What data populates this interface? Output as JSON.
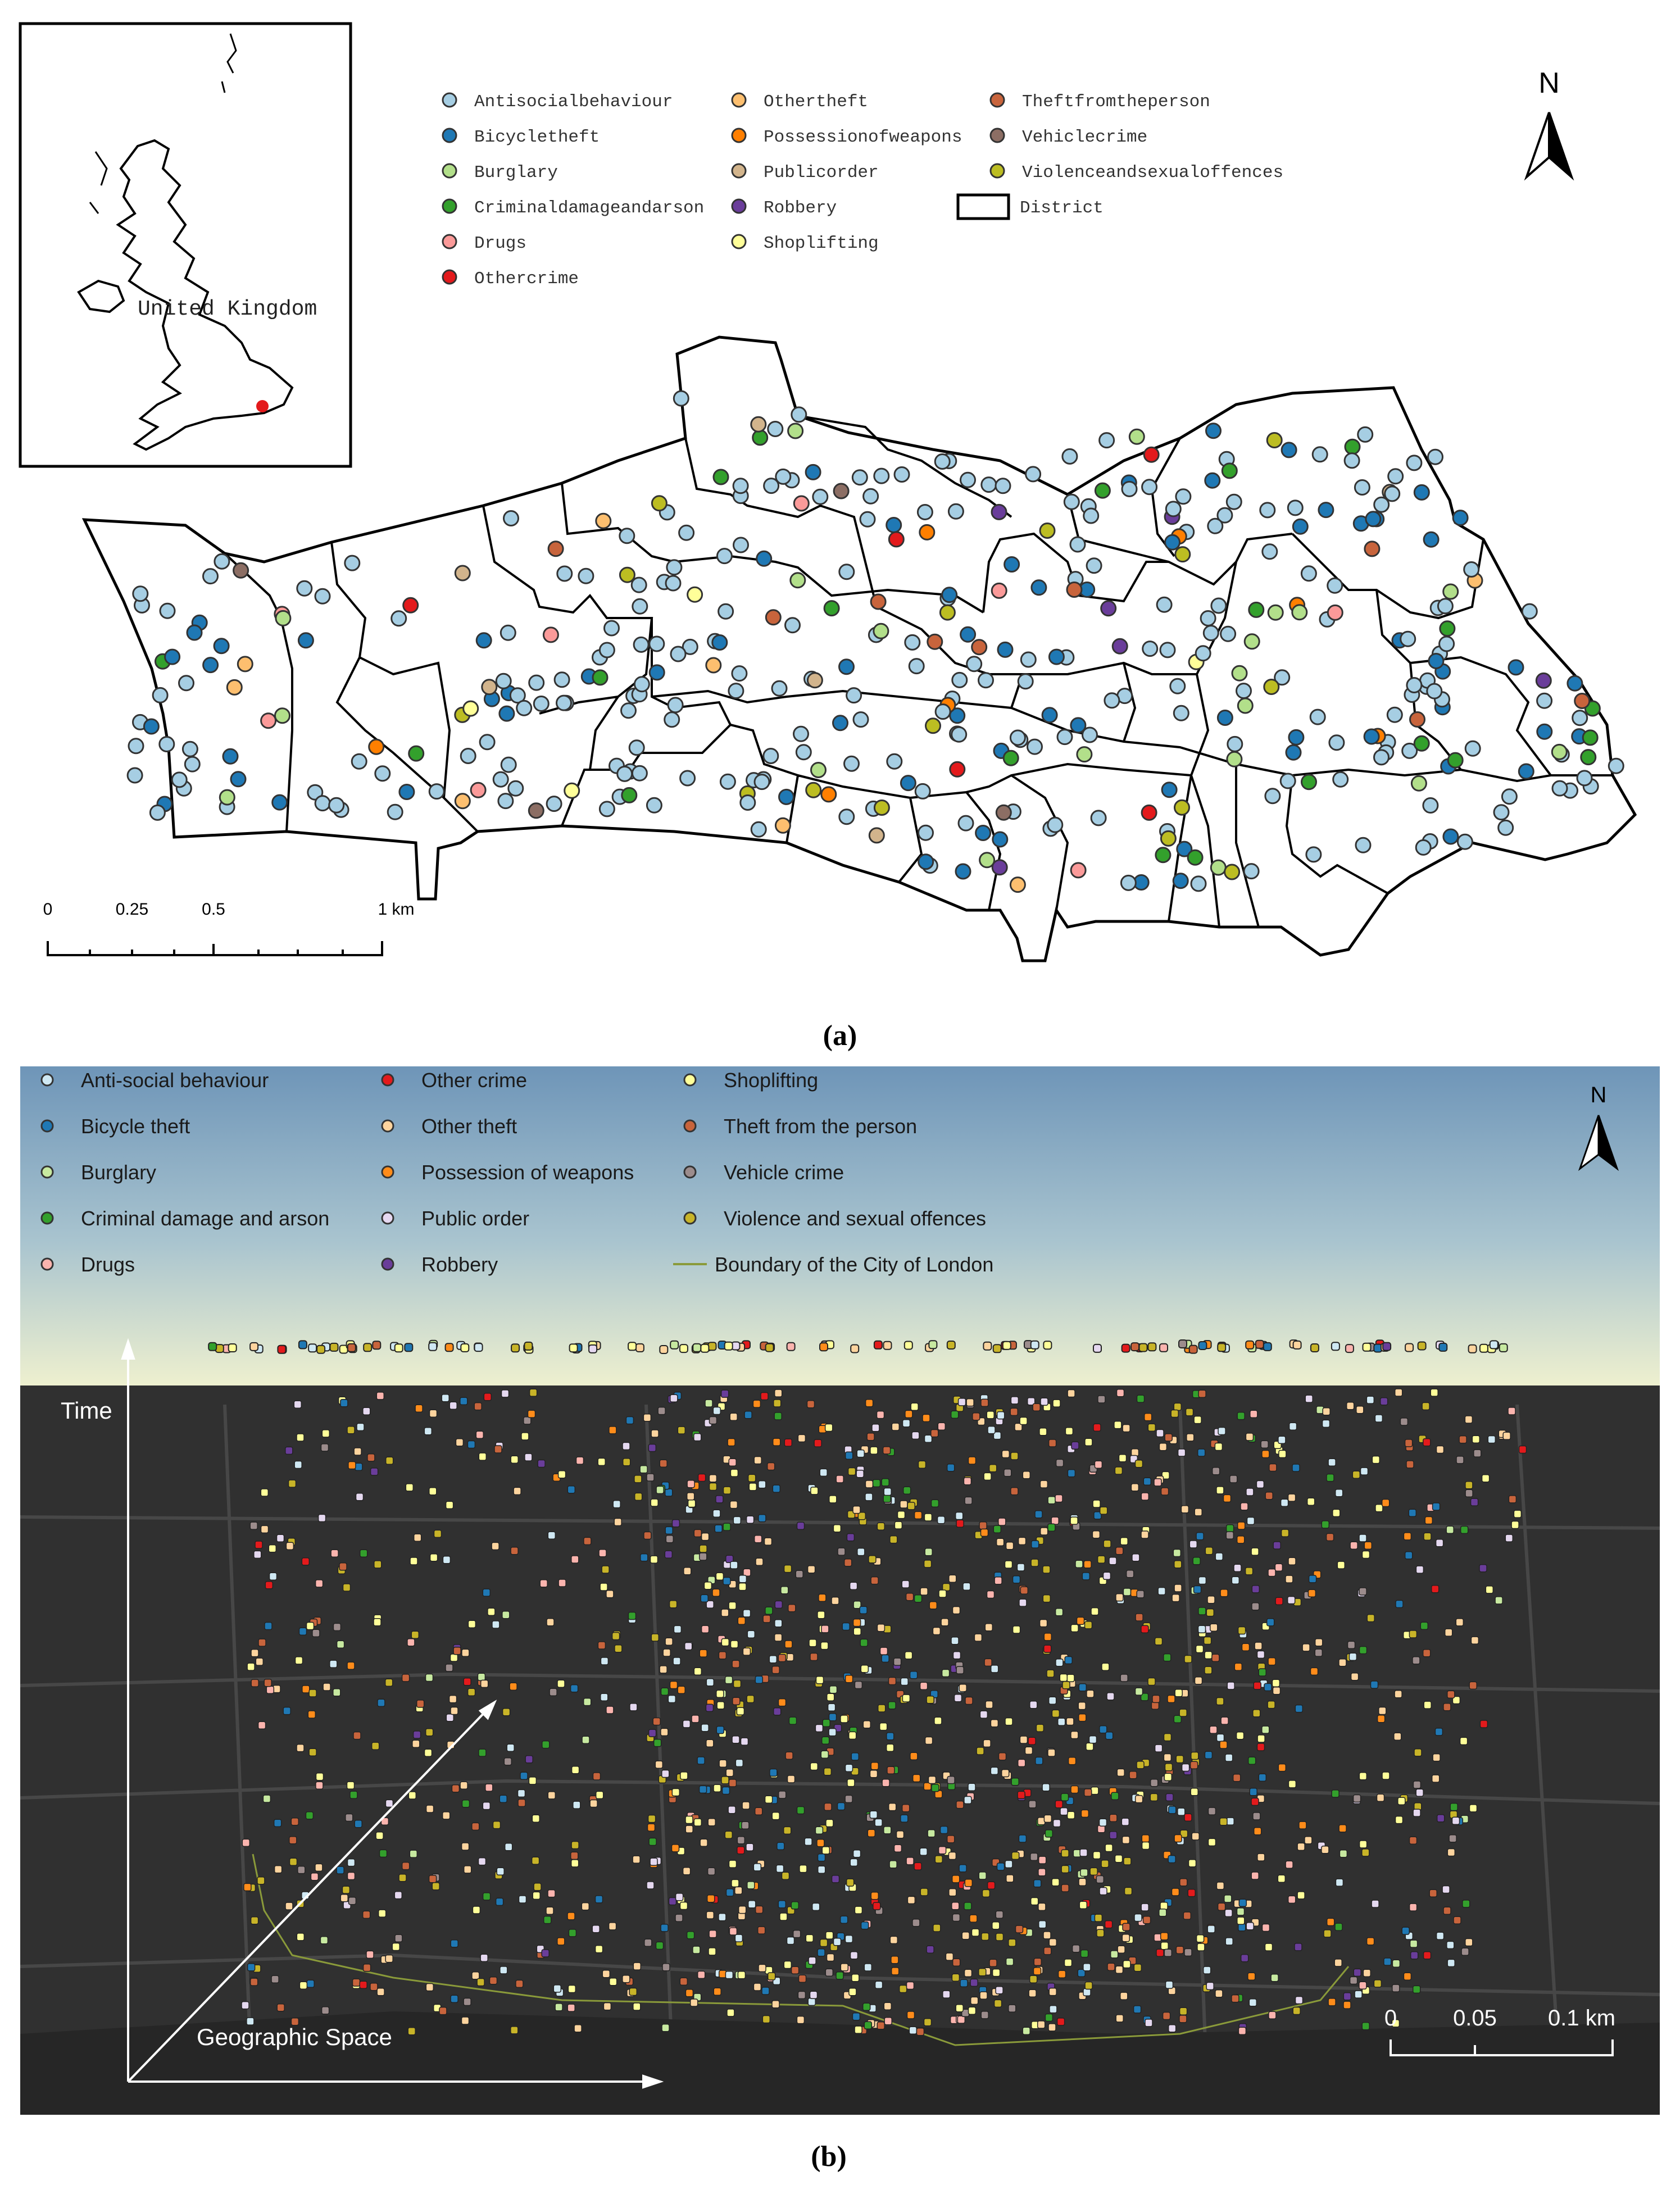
{
  "panel_a": {
    "inset_label": "United Kingdom",
    "north": "N",
    "legend": [
      {
        "label": "Antisocialbehaviour",
        "color": "#a6cee3"
      },
      {
        "label": "Bicycletheft",
        "color": "#1f78b4"
      },
      {
        "label": "Burglary",
        "color": "#b2df8a"
      },
      {
        "label": "Criminaldamageandarson",
        "color": "#33a02c"
      },
      {
        "label": "Drugs",
        "color": "#fb9a99"
      },
      {
        "label": "Othercrime",
        "color": "#e31a1c"
      },
      {
        "label": "Othertheft",
        "color": "#fdbf6f"
      },
      {
        "label": "Possessionofweapons",
        "color": "#ff7f00"
      },
      {
        "label": "Publicorder",
        "color": "#d2b48c"
      },
      {
        "label": "Robbery",
        "color": "#6a3d9a"
      },
      {
        "label": "Shoplifting",
        "color": "#ffff99"
      },
      {
        "label": "Theftfromtheperson",
        "color": "#c8643c"
      },
      {
        "label": "Vehiclecrime",
        "color": "#8c6e64"
      },
      {
        "label": "Violenceandsexualoffences",
        "color": "#bcbd22"
      },
      {
        "label": "District",
        "color": "#000000"
      }
    ],
    "scale": [
      "0",
      "0.25",
      "0.5",
      "1 km"
    ],
    "caption": "(a)"
  },
  "panel_b": {
    "legend": [
      {
        "label": "Anti-social behaviour",
        "color": "#cfe8f3"
      },
      {
        "label": "Bicycle theft",
        "color": "#1f78b4"
      },
      {
        "label": "Burglary",
        "color": "#c7e9a0"
      },
      {
        "label": "Criminal damage and arson",
        "color": "#33a02c"
      },
      {
        "label": "Drugs",
        "color": "#fbb4ae"
      },
      {
        "label": "Other crime",
        "color": "#e31a1c"
      },
      {
        "label": "Other theft",
        "color": "#fdd49e"
      },
      {
        "label": "Possession of weapons",
        "color": "#ff8c1a"
      },
      {
        "label": "Public order",
        "color": "#e5d8f0"
      },
      {
        "label": "Robbery",
        "color": "#6a3d9a"
      },
      {
        "label": "Shoplifting",
        "color": "#ffff99"
      },
      {
        "label": "Theft from the person",
        "color": "#c8643c"
      },
      {
        "label": "Vehicle crime",
        "color": "#9c8c8c"
      },
      {
        "label": "Violence and sexual offences",
        "color": "#c8b428"
      },
      {
        "label": "Boundary of the City of London",
        "color": "#8a9a3a"
      }
    ],
    "north": "N",
    "time_axis": "Time",
    "space_axis": "Geographic Space",
    "scale": [
      "0",
      "0.05",
      "0.1 km"
    ],
    "caption": "(b)"
  }
}
